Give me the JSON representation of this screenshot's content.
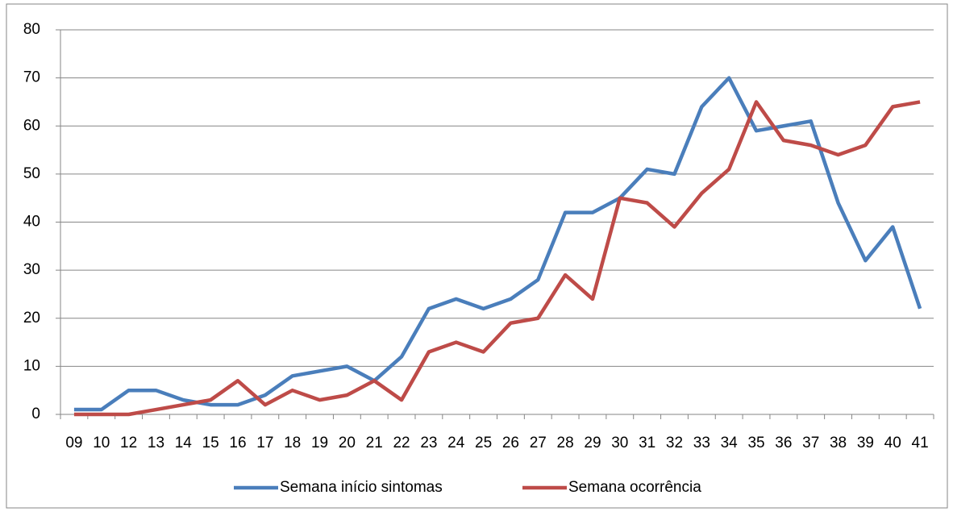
{
  "chart_data": {
    "type": "line",
    "categories": [
      "09",
      "10",
      "12",
      "13",
      "14",
      "15",
      "16",
      "17",
      "18",
      "19",
      "20",
      "21",
      "22",
      "23",
      "24",
      "25",
      "26",
      "27",
      "28",
      "29",
      "30",
      "31",
      "32",
      "33",
      "34",
      "35",
      "36",
      "37",
      "38",
      "39",
      "40",
      "41"
    ],
    "series": [
      {
        "name": "Semana início sintomas",
        "color": "#4a7ebb",
        "values": [
          1,
          1,
          5,
          5,
          3,
          2,
          2,
          4,
          8,
          9,
          10,
          7,
          12,
          22,
          24,
          22,
          24,
          28,
          42,
          42,
          45,
          51,
          50,
          64,
          70,
          59,
          60,
          61,
          44,
          32,
          39,
          22
        ]
      },
      {
        "name": "Semana ocorrência",
        "color": "#be4b48",
        "values": [
          0,
          0,
          0,
          1,
          2,
          3,
          7,
          2,
          5,
          3,
          4,
          7,
          3,
          13,
          15,
          13,
          19,
          20,
          29,
          24,
          45,
          44,
          39,
          46,
          51,
          65,
          57,
          56,
          54,
          56,
          64,
          65
        ]
      }
    ],
    "ylim": [
      0,
      80
    ],
    "yticks": [
      0,
      10,
      20,
      30,
      40,
      50,
      60,
      70,
      80
    ],
    "grid": true,
    "legend": "bottom"
  }
}
